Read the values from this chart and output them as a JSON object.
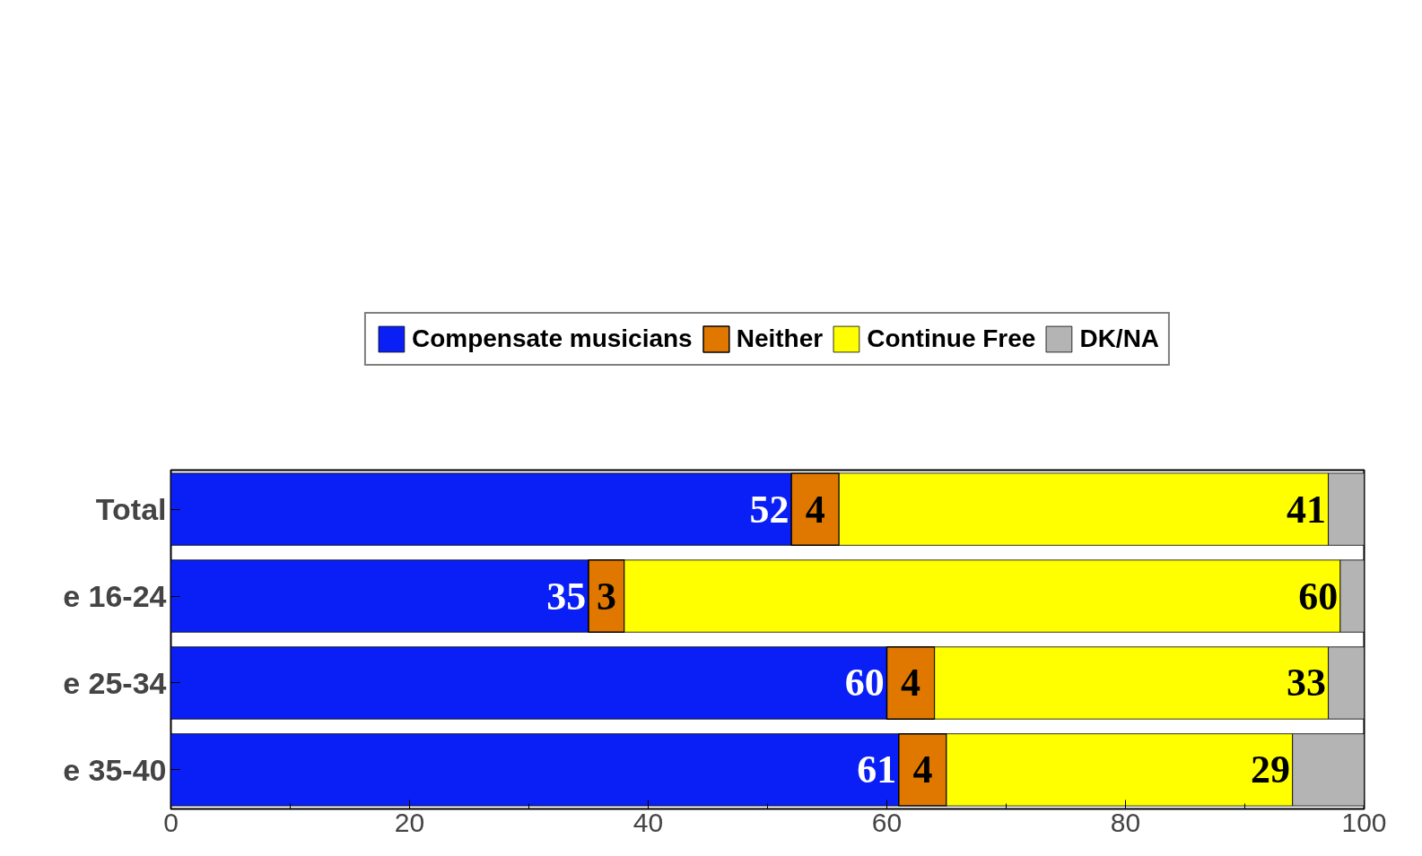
{
  "chart_data": {
    "type": "bar",
    "orientation": "horizontal",
    "stacked": true,
    "categories": [
      "Total",
      "e 16-24",
      "e 25-34",
      "e 35-40"
    ],
    "series": [
      {
        "name": "Compensate musicians",
        "color": "#0a1ff5",
        "values": [
          52,
          35,
          60,
          61
        ],
        "value_labels": [
          "52",
          "35",
          "60",
          "61"
        ]
      },
      {
        "name": "Neither",
        "color": "#e07800",
        "values": [
          4,
          3,
          4,
          4
        ],
        "value_labels": [
          "4",
          "3",
          "4",
          "4"
        ]
      },
      {
        "name": "Continue Free",
        "color": "#ffff00",
        "values": [
          41,
          60,
          33,
          29
        ],
        "value_labels": [
          "41",
          "60",
          "33",
          "29"
        ]
      },
      {
        "name": "DK/NA",
        "color": "#b4b4b4",
        "values": [
          3,
          2,
          3,
          6
        ]
      }
    ],
    "xlim": [
      0,
      100
    ],
    "xticks": [
      0,
      {
        "value": 10,
        "label": null
      },
      20,
      {
        "value": 30,
        "label": null
      },
      40,
      {
        "value": 50,
        "label": null
      },
      60,
      {
        "value": 70,
        "label": null
      },
      80,
      {
        "value": 90,
        "label": null
      },
      100
    ],
    "grid": false,
    "legend": "top"
  }
}
